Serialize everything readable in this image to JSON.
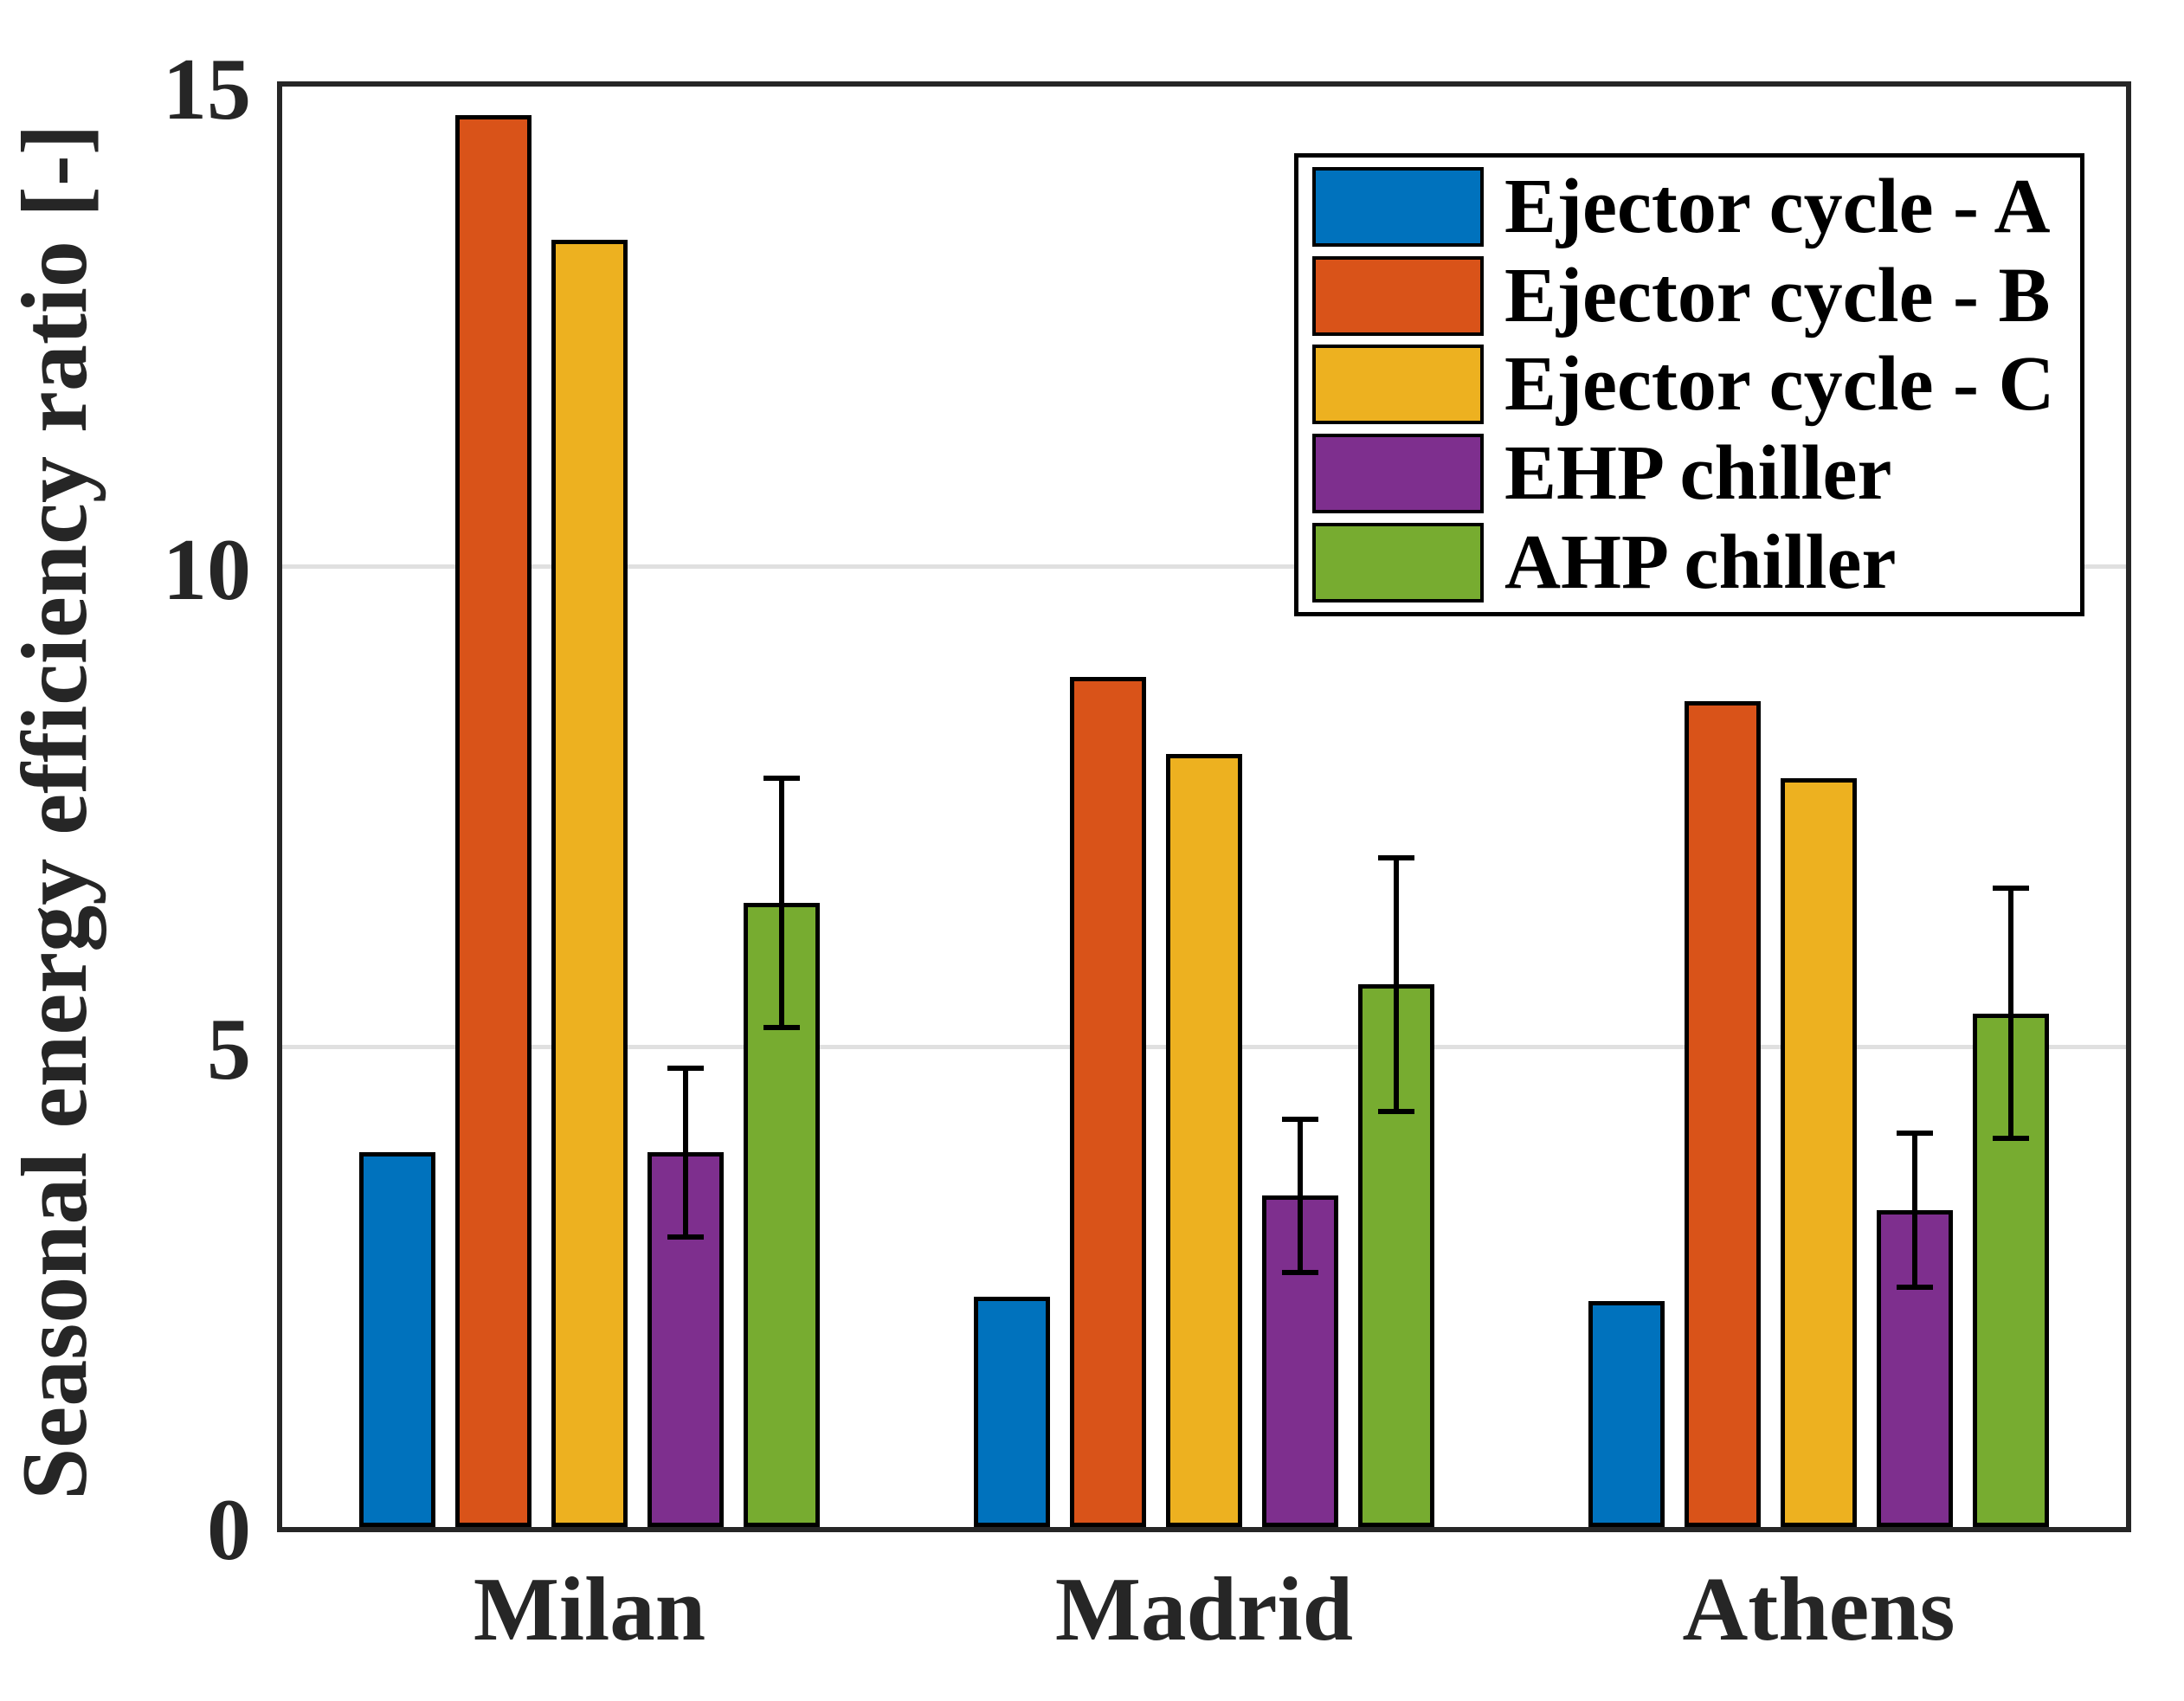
{
  "figure": {
    "background_color": "#ffffff",
    "axis_color": "#262626",
    "grid_color": "#e0e0e0",
    "bar_edge_color": "#000000",
    "error_bar_color": "#000000"
  },
  "chart_data": {
    "type": "bar",
    "title": "",
    "xlabel": "",
    "ylabel": "Seasonal energy efficiency ratio [-]",
    "ylim": [
      0,
      15
    ],
    "yticks": [
      0,
      5,
      10,
      15
    ],
    "grid": "horizontal gridlines at 5 and 10, top frame at 15",
    "legend_position": "top-right inside plot",
    "categories": [
      "Milan",
      "Madrid",
      "Athens"
    ],
    "series": [
      {
        "name": "Ejector cycle - A",
        "color": "#0072BD",
        "values": [
          3.9,
          2.4,
          2.35
        ]
      },
      {
        "name": "Ejector cycle - B",
        "color": "#D95319",
        "values": [
          14.7,
          8.85,
          8.6
        ]
      },
      {
        "name": "Ejector cycle - C",
        "color": "#EDB120",
        "values": [
          13.4,
          8.05,
          7.8
        ]
      },
      {
        "name": "EHP chiller",
        "color": "#7E2F8E",
        "values": [
          3.9,
          3.45,
          3.3
        ],
        "errors": [
          0.88,
          0.8,
          0.8
        ]
      },
      {
        "name": "AHP chiller",
        "color": "#77AC30",
        "values": [
          6.5,
          5.65,
          5.35
        ],
        "errors": [
          1.3,
          1.32,
          1.3
        ]
      }
    ]
  }
}
